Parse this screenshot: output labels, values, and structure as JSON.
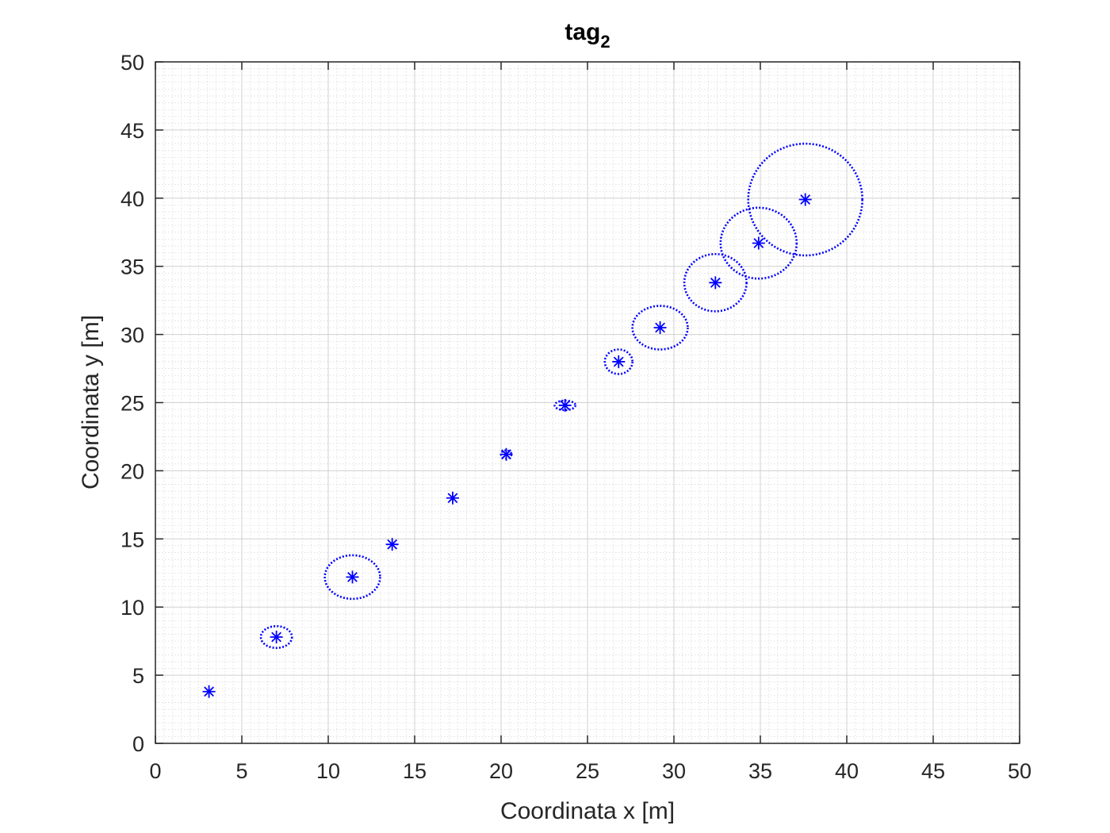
{
  "chart_data": {
    "type": "scatter",
    "title": "tag",
    "title_subscript": "2",
    "xlabel": "Coordinata x [m]",
    "ylabel": "Coordinata y [m]",
    "xlim": [
      0,
      50
    ],
    "ylim": [
      0,
      50
    ],
    "xticks": [
      0,
      5,
      10,
      15,
      20,
      25,
      30,
      35,
      40,
      45,
      50
    ],
    "yticks": [
      0,
      5,
      10,
      15,
      20,
      25,
      30,
      35,
      40,
      45,
      50
    ],
    "grid": true,
    "minor_grid": true,
    "marker": "asterisk",
    "marker_color": "#0000ff",
    "ellipse_color": "#0000ff",
    "ellipse_style": "dotted",
    "points": [
      {
        "x": 3.1,
        "y": 3.8,
        "rx": 0,
        "ry": 0
      },
      {
        "x": 7.0,
        "y": 7.8,
        "rx": 0.9,
        "ry": 0.8
      },
      {
        "x": 11.4,
        "y": 12.2,
        "rx": 1.6,
        "ry": 1.6
      },
      {
        "x": 13.7,
        "y": 14.6,
        "rx": 0,
        "ry": 0
      },
      {
        "x": 17.2,
        "y": 18.0,
        "rx": 0,
        "ry": 0
      },
      {
        "x": 20.3,
        "y": 21.2,
        "rx": 0.3,
        "ry": 0.3
      },
      {
        "x": 23.7,
        "y": 24.8,
        "rx": 0.6,
        "ry": 0.35
      },
      {
        "x": 26.8,
        "y": 28.0,
        "rx": 0.8,
        "ry": 0.9
      },
      {
        "x": 29.2,
        "y": 30.5,
        "rx": 1.6,
        "ry": 1.6
      },
      {
        "x": 32.4,
        "y": 33.8,
        "rx": 1.8,
        "ry": 2.1
      },
      {
        "x": 34.9,
        "y": 36.7,
        "rx": 2.2,
        "ry": 2.6
      },
      {
        "x": 37.6,
        "y": 39.9,
        "rx": 3.3,
        "ry": 4.1
      }
    ]
  }
}
